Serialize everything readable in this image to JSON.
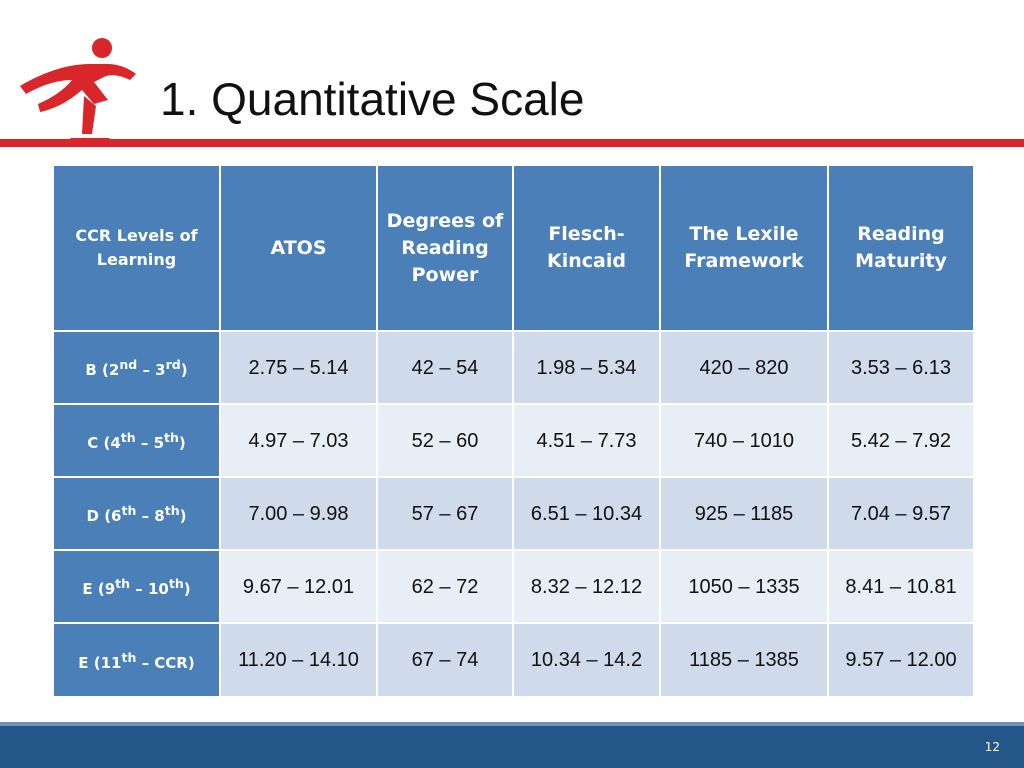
{
  "slide": {
    "title": "1. Quantitative Scale",
    "page_number": "12"
  },
  "colors": {
    "accent_red": "#d9262b",
    "header_blue": "#4a7fb8",
    "row_dark": "#cfdbea",
    "row_light": "#e8eef6",
    "footer_blue": "#25568a"
  },
  "logo": {
    "icon": "running-figure-icon"
  },
  "table": {
    "headers": [
      "CCR Levels of Learning",
      "ATOS",
      "Degrees of Reading Power",
      "Flesch-Kincaid",
      "The Lexile Framework",
      "Reading Maturity"
    ],
    "rows": [
      {
        "level": {
          "letter": "B (2",
          "sup1": "nd",
          "mid": " – 3",
          "sup2": "rd",
          "end": ")"
        },
        "values": [
          "2.75 – 5.14",
          "42 – 54",
          "1.98 – 5.34",
          "420 – 820",
          "3.53 – 6.13"
        ]
      },
      {
        "level": {
          "letter": "C (4",
          "sup1": "th",
          "mid": " – 5",
          "sup2": "th",
          "end": ")"
        },
        "values": [
          "4.97 – 7.03",
          "52 – 60",
          "4.51 – 7.73",
          "740 – 1010",
          "5.42 – 7.92"
        ]
      },
      {
        "level": {
          "letter": "D (6",
          "sup1": "th",
          "mid": " – 8",
          "sup2": "th",
          "end": ")"
        },
        "values": [
          "7.00 – 9.98",
          "57 – 67",
          "6.51 – 10.34",
          "925 – 1185",
          "7.04 – 9.57"
        ]
      },
      {
        "level": {
          "letter": "E (9",
          "sup1": "th",
          "mid": " – 10",
          "sup2": "th",
          "end": ")"
        },
        "values": [
          "9.67 – 12.01",
          "62 – 72",
          "8.32 – 12.12",
          "1050 – 1335",
          "8.41 – 10.81"
        ]
      },
      {
        "level": {
          "letter": "E (11",
          "sup1": "th",
          "mid": " – CCR)",
          "sup2": "",
          "end": ")"
        },
        "values": [
          "11.20 – 14.10",
          "67 – 74",
          "10.34 – 14.2",
          "1185 – 1385",
          "9.57 – 12.00"
        ]
      }
    ]
  }
}
